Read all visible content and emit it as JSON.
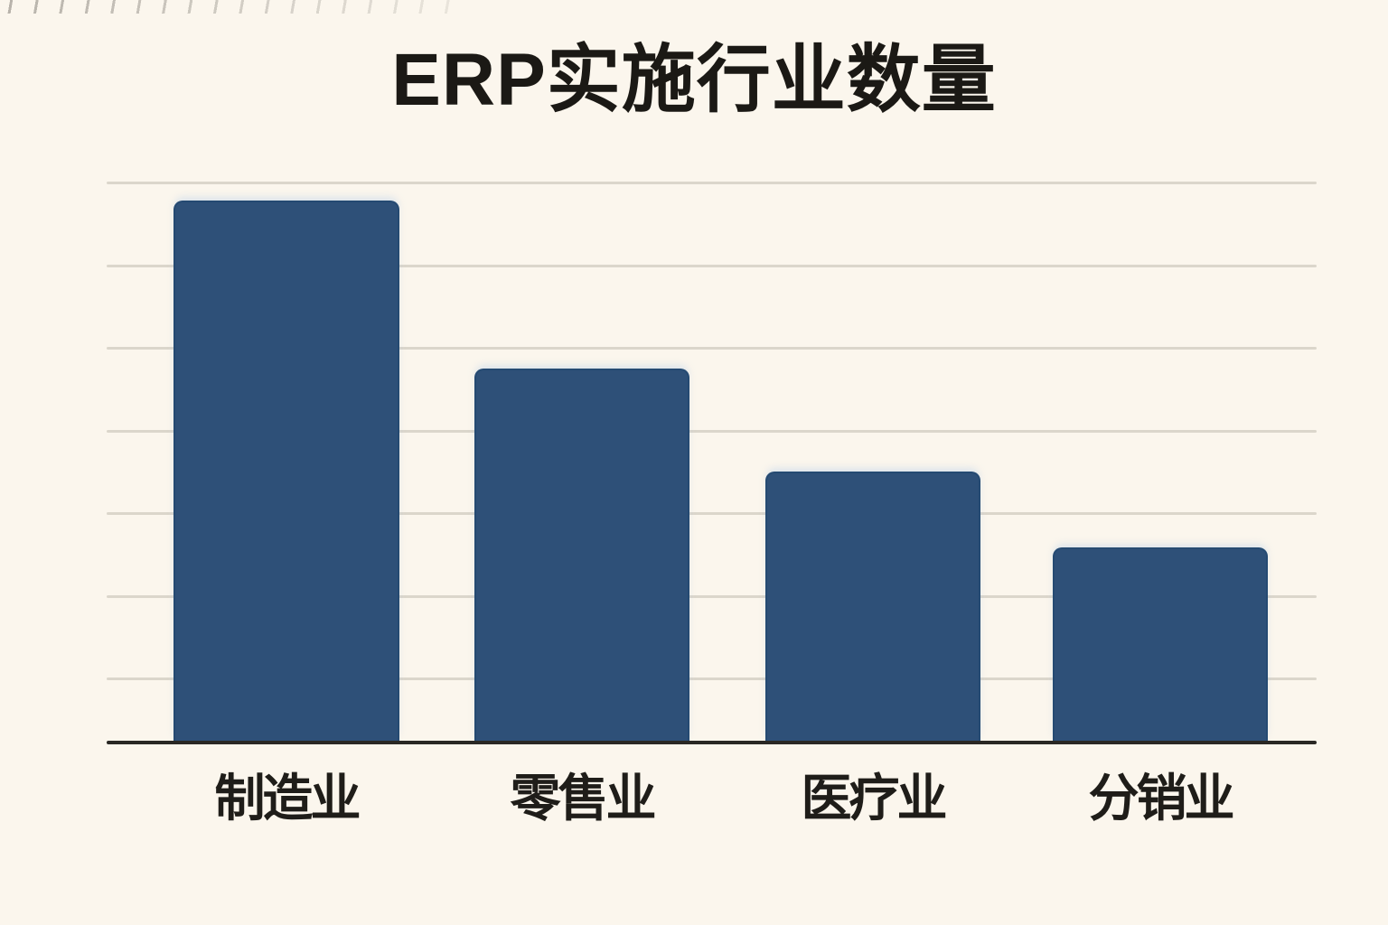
{
  "chart_data": {
    "type": "bar",
    "title": "ERP实施行业数量",
    "categories": [
      "制造业",
      "零售业",
      "医疗业",
      "分销业"
    ],
    "values": [
      100,
      69,
      50,
      36
    ],
    "xlabel": "",
    "ylabel": "",
    "ylim": [
      0,
      104
    ],
    "grid": true,
    "gridline_count": 7,
    "legend": "none",
    "colors": {
      "bar": "#2E5078",
      "bar_border": "#254A72",
      "axis": "#2A2824",
      "gridline": "#DBD6CB",
      "background": "#FBF6ED",
      "title_text": "#1B1915",
      "label_text": "#1F1D19"
    }
  }
}
